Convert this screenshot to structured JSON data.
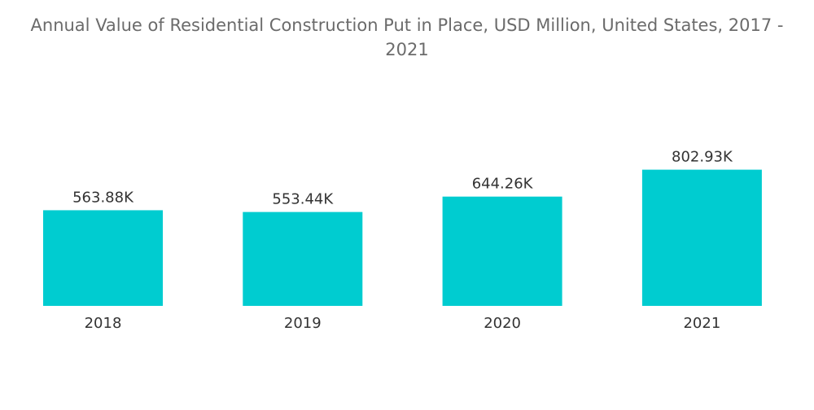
{
  "chart_data": {
    "type": "bar",
    "title": "Annual Value of Residential Construction Put in Place, USD Million, United States, 2017 - 2021",
    "categories": [
      "2018",
      "2019",
      "2020",
      "2021"
    ],
    "values": [
      563.88,
      553.44,
      644.26,
      802.93
    ],
    "value_labels": [
      "563.88K",
      "553.44K",
      "644.26K",
      "802.93K"
    ],
    "xlabel": "",
    "ylabel": "",
    "ylim": [
      0,
      1000
    ],
    "grid": false,
    "legend": "none",
    "bar_color": "#00ccd0"
  }
}
